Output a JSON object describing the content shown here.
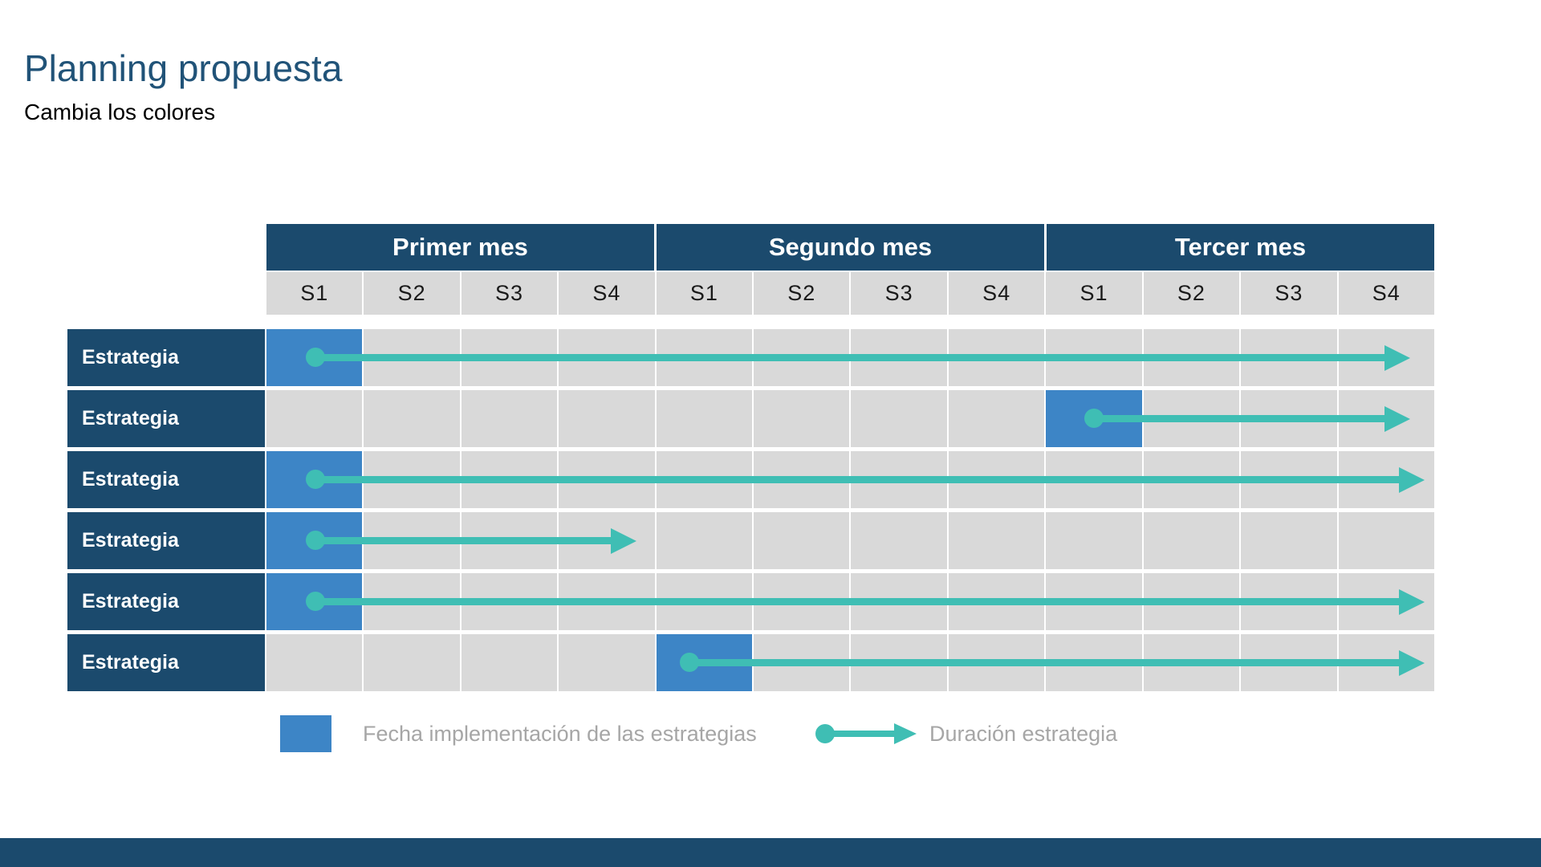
{
  "slide": {
    "title": "Planning propuesta",
    "subtitle": "Cambia los colores"
  },
  "colors": {
    "navy": "#1b4a6d",
    "title_blue": "#215378",
    "cell_gray": "#d9d9d9",
    "block_blue": "#3d85c6",
    "arrow_teal": "#3fbeb4",
    "legend_text": "#a6a6a6"
  },
  "chart_data": {
    "type": "gantt",
    "title": "Planning propuesta",
    "subtitle": "Cambia los colores",
    "months": [
      "Primer mes",
      "Segundo mes",
      "Tercer mes"
    ],
    "weeks": [
      "S1",
      "S2",
      "S3",
      "S4",
      "S1",
      "S2",
      "S3",
      "S4",
      "S1",
      "S2",
      "S3",
      "S4"
    ],
    "weeks_axis_note": "12 weekly columns, 4 per month",
    "rows": [
      {
        "label": "Estrategia",
        "implementation_month": "Primer mes",
        "implementation_week": "S1",
        "block_week_index": 0,
        "start_week": 0.5,
        "end_week": 11.75
      },
      {
        "label": "Estrategia",
        "implementation_month": "Tercer mes",
        "implementation_week": "S1",
        "block_week_index": 8,
        "start_week": 8.5,
        "end_week": 11.75
      },
      {
        "label": "Estrategia",
        "implementation_month": "Primer mes",
        "implementation_week": "S1",
        "block_week_index": 0,
        "start_week": 0.5,
        "end_week": 11.9
      },
      {
        "label": "Estrategia",
        "implementation_month": "Primer mes",
        "implementation_week": "S1",
        "block_week_index": 0,
        "start_week": 0.5,
        "end_week": 3.8
      },
      {
        "label": "Estrategia",
        "implementation_month": "Primer mes",
        "implementation_week": "S1",
        "block_week_index": 0,
        "start_week": 0.5,
        "end_week": 11.9
      },
      {
        "label": "Estrategia",
        "implementation_month": "Segundo mes",
        "implementation_week": "S1",
        "block_week_index": 4,
        "start_week": 4.35,
        "end_week": 11.9
      }
    ],
    "legend": [
      {
        "swatch": "blue-square",
        "label": "Fecha implementación de las estrategias"
      },
      {
        "swatch": "teal-arrow",
        "label": "Duración estrategia"
      }
    ],
    "layout_hints": {
      "legend_position": "bottom",
      "grid": "weekly columns with white separators"
    }
  }
}
